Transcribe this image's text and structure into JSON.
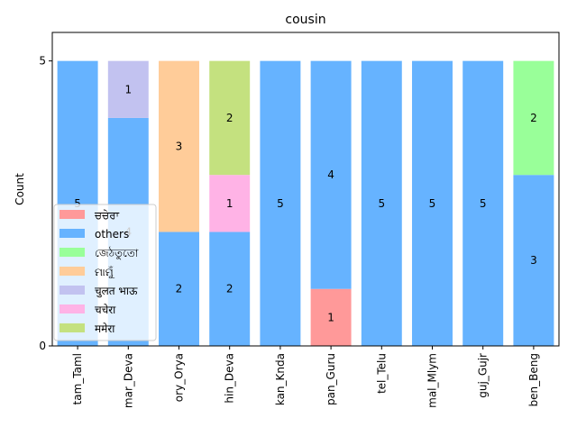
{
  "chart_data": {
    "type": "bar",
    "stacked": true,
    "title": "cousin",
    "xlabel": "",
    "ylabel": "Count",
    "ylim": [
      0,
      5.5
    ],
    "yticks": [
      0,
      5
    ],
    "grid": false,
    "legend_position": "lower-left",
    "categories": [
      "tam_Taml",
      "mar_Deva",
      "ory_Orya",
      "hin_Deva",
      "kan_Knda",
      "pan_Guru",
      "tel_Telu",
      "mal_Mlym",
      "guj_Gujr",
      "ben_Beng"
    ],
    "series": [
      {
        "name": "ਚਚੇਰਾ",
        "color": "#ff9999",
        "values": [
          0,
          0,
          0,
          0,
          0,
          1,
          0,
          0,
          0,
          0
        ]
      },
      {
        "name": "others",
        "color": "#66b3ff",
        "values": [
          5,
          4,
          2,
          2,
          5,
          4,
          5,
          5,
          5,
          3
        ]
      },
      {
        "name": "জেঠতুতো",
        "color": "#99ff99",
        "values": [
          0,
          0,
          0,
          0,
          0,
          0,
          0,
          0,
          0,
          2
        ]
      },
      {
        "name": "ମାମୁଁ",
        "color": "#ffcc99",
        "values": [
          0,
          0,
          3,
          0,
          0,
          0,
          0,
          0,
          0,
          0
        ]
      },
      {
        "name": "चुलत भाऊ",
        "color": "#c2c2f0",
        "values": [
          0,
          1,
          0,
          0,
          0,
          0,
          0,
          0,
          0,
          0
        ]
      },
      {
        "name": "चचेरा",
        "color": "#ffb3e6",
        "values": [
          0,
          0,
          0,
          1,
          0,
          0,
          0,
          0,
          0,
          0
        ]
      },
      {
        "name": "ममेरा",
        "color": "#c4e17f",
        "values": [
          0,
          0,
          0,
          2,
          0,
          0,
          0,
          0,
          0,
          0
        ]
      }
    ]
  }
}
